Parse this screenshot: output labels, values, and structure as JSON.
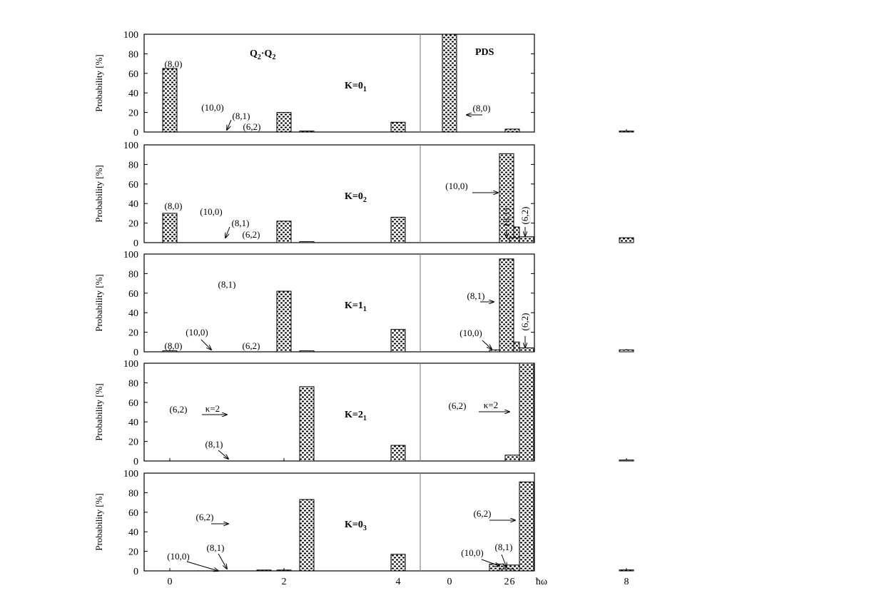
{
  "chart_data": {
    "type": "bar",
    "ylabel": "Probability [%]",
    "ylim": [
      0,
      100
    ],
    "yticks": [
      "0",
      "20",
      "40",
      "60",
      "80",
      "100"
    ],
    "sections": {
      "left": {
        "title": "Q₂·Q₂",
        "xticks": [
          "0",
          "2",
          "4",
          "6",
          "8"
        ]
      },
      "right": {
        "title": "PDS",
        "xticks": [
          "0",
          "2"
        ]
      }
    },
    "x_unit_label": "ħω",
    "panels": [
      {
        "state_label": "K=0",
        "state_sub": "1",
        "left_bars": [
          {
            "x": 0,
            "value": 65
          },
          {
            "x": 2,
            "value": 20
          },
          {
            "x": 2.4,
            "value": 1
          },
          {
            "x": 4,
            "value": 10
          },
          {
            "x": 6,
            "value": 3
          },
          {
            "x": 8,
            "value": 1
          }
        ],
        "right_bars": [
          {
            "x": 0,
            "value": 100
          }
        ],
        "annotations": [
          "(8,0)",
          "(10,0)",
          "(8,1)",
          "(6,2)",
          "(8,0)"
        ]
      },
      {
        "state_label": "K=0",
        "state_sub": "2",
        "left_bars": [
          {
            "x": 0,
            "value": 30
          },
          {
            "x": 2,
            "value": 22
          },
          {
            "x": 2.4,
            "value": 1
          },
          {
            "x": 4,
            "value": 26
          },
          {
            "x": 6,
            "value": 16
          },
          {
            "x": 8,
            "value": 5
          }
        ],
        "right_bars": [
          {
            "x": 2,
            "value": 91
          },
          {
            "x": 2.35,
            "value": 5
          },
          {
            "x": 2.7,
            "value": 6
          }
        ],
        "annotations": [
          "(8,0)",
          "(10,0)",
          "(8,1)",
          "(6,2)",
          "(10,0)",
          "(8,1)",
          "(6,2)"
        ]
      },
      {
        "state_label": "K=1",
        "state_sub": "1",
        "left_bars": [
          {
            "x": 0,
            "value": 1
          },
          {
            "x": 2,
            "value": 62
          },
          {
            "x": 2.4,
            "value": 1
          },
          {
            "x": 4,
            "value": 23
          },
          {
            "x": 6,
            "value": 10
          },
          {
            "x": 8,
            "value": 2
          }
        ],
        "right_bars": [
          {
            "x": 1.65,
            "value": 2
          },
          {
            "x": 2,
            "value": 95
          },
          {
            "x": 2.7,
            "value": 4
          }
        ],
        "annotations": [
          "(8,0)",
          "(10,0)",
          "(8,1)",
          "(6,2)",
          "(8,1)",
          "(10,0)",
          "(6,2)"
        ]
      },
      {
        "state_label": "K=2",
        "state_sub": "1",
        "left_bars": [
          {
            "x": 2.4,
            "value": 76
          },
          {
            "x": 4,
            "value": 16
          },
          {
            "x": 6,
            "value": 6
          },
          {
            "x": 8,
            "value": 1
          }
        ],
        "right_bars": [
          {
            "x": 2.7,
            "value": 100
          }
        ],
        "annotations": [
          "(6,2)",
          "κ=2",
          "(8,1)",
          "(6,2)",
          "κ=2"
        ]
      },
      {
        "state_label": "K=0",
        "state_sub": "3",
        "left_bars": [
          {
            "x": 1.65,
            "value": 0.5
          },
          {
            "x": 2,
            "value": 0.5
          },
          {
            "x": 2.4,
            "value": 73
          },
          {
            "x": 4,
            "value": 17
          },
          {
            "x": 6,
            "value": 6
          },
          {
            "x": 8,
            "value": 1
          }
        ],
        "right_bars": [
          {
            "x": 1.65,
            "value": 7
          },
          {
            "x": 2,
            "value": 2
          },
          {
            "x": 2.7,
            "value": 91
          }
        ],
        "annotations": [
          "(6,2)",
          "(8,1)",
          "(10,0)",
          "(10,0)",
          "(8,1)",
          "(6,2)"
        ]
      }
    ]
  }
}
